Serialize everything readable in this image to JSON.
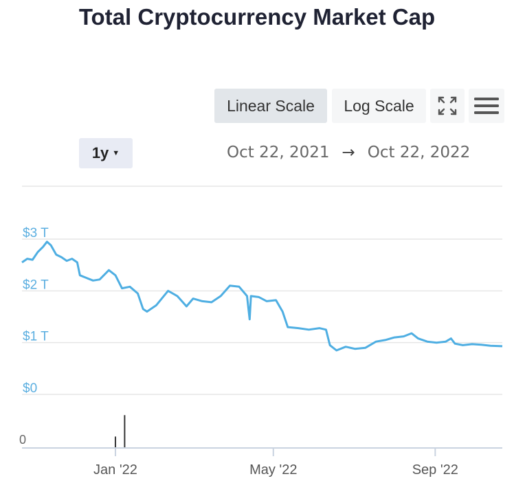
{
  "title": "Total Cryptocurrency Market Cap",
  "toolbar": {
    "linear_label": "Linear Scale",
    "log_label": "Log Scale",
    "fullscreen_icon": "fullscreen-icon",
    "menu_icon": "hamburger-menu-icon"
  },
  "range": {
    "selected": "1y",
    "start": "Oct 22, 2021",
    "arrow": "→",
    "end": "Oct 22, 2022"
  },
  "colors": {
    "line": "#4eaee2",
    "axis_label": "#5aaee0",
    "grid": "#e6e6e6",
    "volume_bar": "#333333"
  },
  "chart_data": {
    "type": "line",
    "x_label": "",
    "y_label": "",
    "x_range": [
      "2021-10-22",
      "2022-10-22"
    ],
    "y_range": [
      0,
      3
    ],
    "y_unit": "trillion USD",
    "y_ticks": [
      "$0",
      "$1 T",
      "$2 T",
      "$3 T"
    ],
    "x_ticks": [
      {
        "date": "2022-01-01",
        "label": "Jan '22"
      },
      {
        "date": "2022-05-01",
        "label": "May '22"
      },
      {
        "date": "2022-09-01",
        "label": "Sep '22"
      }
    ],
    "grid": true,
    "series": [
      {
        "points": [
          [
            "2021-10-22",
            2.55
          ],
          [
            "2021-10-26",
            2.62
          ],
          [
            "2021-10-30",
            2.6
          ],
          [
            "2021-11-03",
            2.75
          ],
          [
            "2021-11-07",
            2.85
          ],
          [
            "2021-11-10",
            2.95
          ],
          [
            "2021-11-13",
            2.88
          ],
          [
            "2021-11-17",
            2.7
          ],
          [
            "2021-11-21",
            2.65
          ],
          [
            "2021-11-25",
            2.58
          ],
          [
            "2021-11-29",
            2.62
          ],
          [
            "2021-12-03",
            2.55
          ],
          [
            "2021-12-05",
            2.3
          ],
          [
            "2021-12-10",
            2.25
          ],
          [
            "2021-12-15",
            2.2
          ],
          [
            "2021-12-20",
            2.22
          ],
          [
            "2021-12-27",
            2.4
          ],
          [
            "2022-01-01",
            2.3
          ],
          [
            "2022-01-06",
            2.05
          ],
          [
            "2022-01-12",
            2.08
          ],
          [
            "2022-01-18",
            1.95
          ],
          [
            "2022-01-22",
            1.65
          ],
          [
            "2022-01-25",
            1.6
          ],
          [
            "2022-02-01",
            1.72
          ],
          [
            "2022-02-10",
            2.0
          ],
          [
            "2022-02-17",
            1.9
          ],
          [
            "2022-02-24",
            1.7
          ],
          [
            "2022-03-01",
            1.85
          ],
          [
            "2022-03-08",
            1.8
          ],
          [
            "2022-03-15",
            1.78
          ],
          [
            "2022-03-22",
            1.9
          ],
          [
            "2022-03-29",
            2.1
          ],
          [
            "2022-04-05",
            2.08
          ],
          [
            "2022-04-11",
            1.9
          ],
          [
            "2022-04-13",
            1.45
          ],
          [
            "2022-04-14",
            1.9
          ],
          [
            "2022-04-20",
            1.88
          ],
          [
            "2022-04-26",
            1.8
          ],
          [
            "2022-05-03",
            1.82
          ],
          [
            "2022-05-08",
            1.6
          ],
          [
            "2022-05-12",
            1.3
          ],
          [
            "2022-05-20",
            1.28
          ],
          [
            "2022-05-28",
            1.25
          ],
          [
            "2022-06-05",
            1.28
          ],
          [
            "2022-06-10",
            1.25
          ],
          [
            "2022-06-13",
            0.95
          ],
          [
            "2022-06-18",
            0.85
          ],
          [
            "2022-06-25",
            0.92
          ],
          [
            "2022-07-02",
            0.88
          ],
          [
            "2022-07-10",
            0.9
          ],
          [
            "2022-07-18",
            1.02
          ],
          [
            "2022-07-25",
            1.05
          ],
          [
            "2022-08-01",
            1.1
          ],
          [
            "2022-08-08",
            1.12
          ],
          [
            "2022-08-14",
            1.18
          ],
          [
            "2022-08-19",
            1.08
          ],
          [
            "2022-08-26",
            1.02
          ],
          [
            "2022-09-02",
            1.0
          ],
          [
            "2022-09-09",
            1.02
          ],
          [
            "2022-09-13",
            1.08
          ],
          [
            "2022-09-16",
            0.98
          ],
          [
            "2022-09-22",
            0.95
          ],
          [
            "2022-09-29",
            0.97
          ],
          [
            "2022-10-06",
            0.96
          ],
          [
            "2022-10-13",
            0.94
          ],
          [
            "2022-10-22",
            0.93
          ]
        ]
      }
    ],
    "volume": {
      "axis_label": "0",
      "bars": [
        {
          "date": "2022-01-01",
          "level": 0.2
        },
        {
          "date": "2022-01-08",
          "level": 0.6
        }
      ]
    }
  }
}
